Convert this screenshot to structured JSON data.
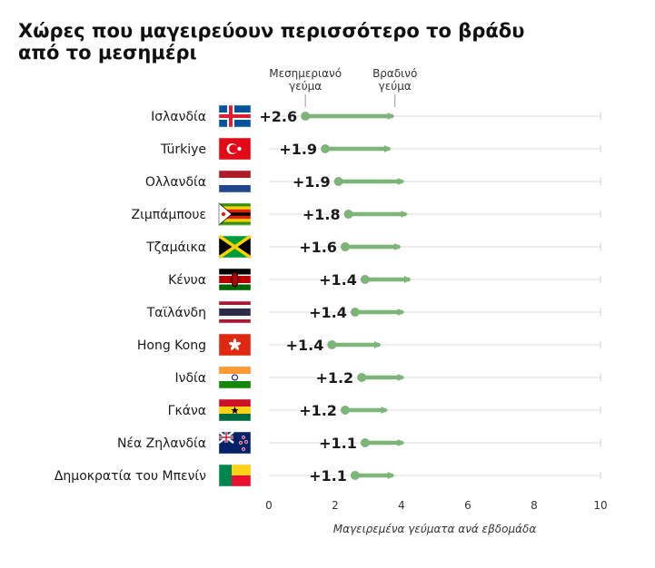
{
  "title": "Χώρες που μαγειρεύουν περισσότερο το βράδυ από το μεσημέρι",
  "legend": {
    "start": "Μεσημεριανό γεύμα",
    "end": "Βραδινό γεύμα"
  },
  "colors": {
    "accent": "#7db579",
    "grid": "#dddddd",
    "text": "#1a1a1a"
  },
  "chart_data": {
    "type": "dumbbell",
    "xlabel": "Μαγειρεμένα γεύματα ανά εβδομάδα",
    "xlim": [
      0,
      10
    ],
    "xticks": [
      0,
      2,
      4,
      6,
      8,
      10
    ],
    "legend_labels": [
      "Μεσημεριανό γεύμα",
      "Βραδινό γεύμα"
    ],
    "rows": [
      {
        "country": "Ισλανδία",
        "lunch": 1.1,
        "dinner": 3.8,
        "diff": "+2.6",
        "flag": "iceland-flag-icon"
      },
      {
        "country": "Türkiye",
        "lunch": 1.7,
        "dinner": 3.7,
        "diff": "+1.9",
        "flag": "turkey-flag-icon"
      },
      {
        "country": "Ολλανδία",
        "lunch": 2.1,
        "dinner": 4.1,
        "diff": "+1.9",
        "flag": "netherlands-flag-icon"
      },
      {
        "country": "Ζιμπάμπουε",
        "lunch": 2.4,
        "dinner": 4.2,
        "diff": "+1.8",
        "flag": "zimbabwe-flag-icon"
      },
      {
        "country": "Τζαμάικα",
        "lunch": 2.3,
        "dinner": 4.0,
        "diff": "+1.6",
        "flag": "jamaica-flag-icon"
      },
      {
        "country": "Κένυα",
        "lunch": 2.9,
        "dinner": 4.3,
        "diff": "+1.4",
        "flag": "kenya-flag-icon"
      },
      {
        "country": "Ταϊλάνδη",
        "lunch": 2.6,
        "dinner": 4.1,
        "diff": "+1.4",
        "flag": "thailand-flag-icon"
      },
      {
        "country": "Hong Kong",
        "lunch": 1.9,
        "dinner": 3.4,
        "diff": "+1.4",
        "flag": "hong-kong-flag-icon"
      },
      {
        "country": "Ινδία",
        "lunch": 2.8,
        "dinner": 4.1,
        "diff": "+1.2",
        "flag": "india-flag-icon"
      },
      {
        "country": "Γκάνα",
        "lunch": 2.3,
        "dinner": 3.6,
        "diff": "+1.2",
        "flag": "ghana-flag-icon"
      },
      {
        "country": "Νέα Ζηλανδία",
        "lunch": 2.9,
        "dinner": 4.1,
        "diff": "+1.1",
        "flag": "new-zealand-flag-icon"
      },
      {
        "country": "Δημοκρατία του Μπενίν",
        "lunch": 2.6,
        "dinner": 3.8,
        "diff": "+1.1",
        "flag": "benin-flag-icon"
      }
    ]
  }
}
